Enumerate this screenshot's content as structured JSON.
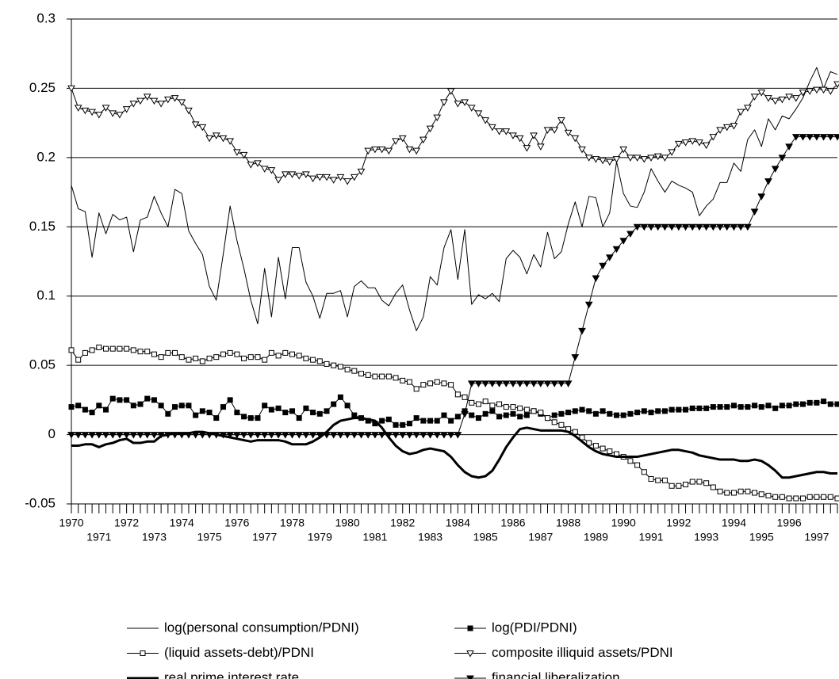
{
  "chart_data": {
    "type": "line",
    "x": [
      1970,
      1970.25,
      1970.5,
      1970.75,
      1971,
      1971.25,
      1971.5,
      1971.75,
      1972,
      1972.25,
      1972.5,
      1972.75,
      1973,
      1973.25,
      1973.5,
      1973.75,
      1974,
      1974.25,
      1974.5,
      1974.75,
      1975,
      1975.25,
      1975.5,
      1975.75,
      1976,
      1976.25,
      1976.5,
      1976.75,
      1977,
      1977.25,
      1977.5,
      1977.75,
      1978,
      1978.25,
      1978.5,
      1978.75,
      1979,
      1979.25,
      1979.5,
      1979.75,
      1980,
      1980.25,
      1980.5,
      1980.75,
      1981,
      1981.25,
      1981.5,
      1981.75,
      1982,
      1982.25,
      1982.5,
      1982.75,
      1983,
      1983.25,
      1983.5,
      1983.75,
      1984,
      1984.25,
      1984.5,
      1984.75,
      1985,
      1985.25,
      1985.5,
      1985.75,
      1986,
      1986.25,
      1986.5,
      1986.75,
      1987,
      1987.25,
      1987.5,
      1987.75,
      1988,
      1988.25,
      1988.5,
      1988.75,
      1989,
      1989.25,
      1989.5,
      1989.75,
      1990,
      1990.25,
      1990.5,
      1990.75,
      1991,
      1991.25,
      1991.5,
      1991.75,
      1992,
      1992.25,
      1992.5,
      1992.75,
      1993,
      1993.25,
      1993.5,
      1993.75,
      1994,
      1994.25,
      1994.5,
      1994.75,
      1995,
      1995.25,
      1995.5,
      1995.75,
      1996,
      1996.25,
      1996.5,
      1996.75,
      1997,
      1997.25,
      1997.5,
      1997.75
    ],
    "series": [
      {
        "name": "log(personal consumption/PDNI)",
        "color": "#000000",
        "width": 1,
        "marker": "none",
        "values": [
          0.18,
          0.163,
          0.161,
          0.128,
          0.16,
          0.145,
          0.159,
          0.155,
          0.157,
          0.132,
          0.155,
          0.157,
          0.172,
          0.16,
          0.15,
          0.177,
          0.174,
          0.147,
          0.138,
          0.13,
          0.107,
          0.097,
          0.13,
          0.165,
          0.14,
          0.12,
          0.097,
          0.08,
          0.12,
          0.085,
          0.128,
          0.098,
          0.135,
          0.135,
          0.11,
          0.1,
          0.084,
          0.102,
          0.102,
          0.104,
          0.085,
          0.107,
          0.111,
          0.106,
          0.106,
          0.097,
          0.093,
          0.102,
          0.108,
          0.09,
          0.075,
          0.085,
          0.114,
          0.108,
          0.135,
          0.148,
          0.112,
          0.148,
          0.094,
          0.101,
          0.098,
          0.102,
          0.096,
          0.127,
          0.133,
          0.128,
          0.116,
          0.13,
          0.121,
          0.146,
          0.127,
          0.132,
          0.152,
          0.168,
          0.15,
          0.172,
          0.171,
          0.15,
          0.16,
          0.197,
          0.174,
          0.165,
          0.164,
          0.175,
          0.192,
          0.183,
          0.175,
          0.183,
          0.18,
          0.178,
          0.175,
          0.158,
          0.165,
          0.17,
          0.182,
          0.182,
          0.196,
          0.19,
          0.213,
          0.22,
          0.208,
          0.228,
          0.22,
          0.23,
          0.228,
          0.235,
          0.243,
          0.255,
          0.265,
          0.25,
          0.262,
          0.26
        ]
      },
      {
        "name": "log(PDI/PDNI)",
        "color": "#000000",
        "width": 1,
        "marker": "square-filled",
        "values": [
          0.02,
          0.021,
          0.018,
          0.016,
          0.021,
          0.018,
          0.026,
          0.025,
          0.025,
          0.021,
          0.022,
          0.026,
          0.025,
          0.021,
          0.015,
          0.02,
          0.021,
          0.021,
          0.014,
          0.017,
          0.016,
          0.012,
          0.02,
          0.025,
          0.016,
          0.013,
          0.012,
          0.012,
          0.021,
          0.018,
          0.019,
          0.016,
          0.017,
          0.012,
          0.019,
          0.016,
          0.015,
          0.017,
          0.022,
          0.027,
          0.021,
          0.014,
          0.012,
          0.01,
          0.008,
          0.01,
          0.011,
          0.007,
          0.007,
          0.008,
          0.012,
          0.01,
          0.01,
          0.01,
          0.014,
          0.01,
          0.013,
          0.017,
          0.014,
          0.012,
          0.015,
          0.017,
          0.013,
          0.014,
          0.015,
          0.013,
          0.014,
          0.017,
          0.015,
          0.012,
          0.014,
          0.015,
          0.016,
          0.017,
          0.018,
          0.017,
          0.015,
          0.017,
          0.015,
          0.014,
          0.014,
          0.015,
          0.016,
          0.017,
          0.016,
          0.017,
          0.017,
          0.018,
          0.018,
          0.018,
          0.019,
          0.019,
          0.019,
          0.02,
          0.02,
          0.02,
          0.021,
          0.02,
          0.02,
          0.021,
          0.02,
          0.021,
          0.019,
          0.021,
          0.021,
          0.022,
          0.022,
          0.023,
          0.023,
          0.024,
          0.022,
          0.022
        ]
      },
      {
        "name": "(liquid assets-debt)/PDNI",
        "color": "#000000",
        "width": 1,
        "marker": "square-open",
        "values": [
          0.061,
          0.054,
          0.059,
          0.061,
          0.063,
          0.062,
          0.062,
          0.062,
          0.062,
          0.061,
          0.06,
          0.06,
          0.058,
          0.056,
          0.059,
          0.059,
          0.056,
          0.054,
          0.055,
          0.053,
          0.055,
          0.056,
          0.058,
          0.059,
          0.058,
          0.055,
          0.056,
          0.056,
          0.054,
          0.059,
          0.057,
          0.059,
          0.058,
          0.057,
          0.055,
          0.054,
          0.053,
          0.051,
          0.05,
          0.049,
          0.047,
          0.046,
          0.044,
          0.043,
          0.042,
          0.042,
          0.042,
          0.041,
          0.039,
          0.038,
          0.033,
          0.036,
          0.037,
          0.038,
          0.037,
          0.036,
          0.029,
          0.027,
          0.023,
          0.022,
          0.024,
          0.021,
          0.022,
          0.02,
          0.02,
          0.019,
          0.018,
          0.017,
          0.016,
          0.012,
          0.009,
          0.007,
          0.004,
          0.002,
          -0.002,
          -0.006,
          -0.008,
          -0.01,
          -0.012,
          -0.014,
          -0.016,
          -0.019,
          -0.022,
          -0.027,
          -0.032,
          -0.033,
          -0.033,
          -0.037,
          -0.037,
          -0.036,
          -0.034,
          -0.034,
          -0.035,
          -0.038,
          -0.041,
          -0.042,
          -0.042,
          -0.041,
          -0.041,
          -0.042,
          -0.043,
          -0.044,
          -0.045,
          -0.045,
          -0.046,
          -0.046,
          -0.046,
          -0.045,
          -0.045,
          -0.045,
          -0.045,
          -0.046
        ]
      },
      {
        "name": "composite illiquid assets/PDNI",
        "color": "#000000",
        "width": 1,
        "marker": "triangle-open",
        "values": [
          0.25,
          0.236,
          0.234,
          0.233,
          0.231,
          0.236,
          0.232,
          0.231,
          0.235,
          0.239,
          0.241,
          0.244,
          0.241,
          0.239,
          0.242,
          0.243,
          0.24,
          0.234,
          0.224,
          0.222,
          0.214,
          0.216,
          0.214,
          0.212,
          0.204,
          0.202,
          0.195,
          0.196,
          0.192,
          0.191,
          0.184,
          0.188,
          0.188,
          0.187,
          0.188,
          0.185,
          0.186,
          0.186,
          0.184,
          0.186,
          0.183,
          0.186,
          0.19,
          0.205,
          0.206,
          0.206,
          0.205,
          0.212,
          0.214,
          0.206,
          0.205,
          0.213,
          0.221,
          0.229,
          0.24,
          0.248,
          0.239,
          0.24,
          0.236,
          0.232,
          0.227,
          0.222,
          0.219,
          0.219,
          0.216,
          0.214,
          0.207,
          0.216,
          0.208,
          0.22,
          0.22,
          0.227,
          0.218,
          0.214,
          0.206,
          0.2,
          0.199,
          0.198,
          0.197,
          0.199,
          0.206,
          0.2,
          0.2,
          0.199,
          0.2,
          0.201,
          0.2,
          0.204,
          0.21,
          0.211,
          0.212,
          0.211,
          0.209,
          0.215,
          0.22,
          0.222,
          0.223,
          0.233,
          0.236,
          0.244,
          0.247,
          0.243,
          0.241,
          0.242,
          0.244,
          0.243,
          0.247,
          0.248,
          0.249,
          0.249,
          0.248,
          0.253
        ]
      },
      {
        "name": "real prime interest rate",
        "color": "#000000",
        "width": 3,
        "marker": "none",
        "values": [
          -0.008,
          -0.008,
          -0.007,
          -0.007,
          -0.009,
          -0.007,
          -0.006,
          -0.004,
          -0.003,
          -0.006,
          -0.006,
          -0.005,
          -0.005,
          -0.001,
          0,
          0.001,
          0.001,
          0.001,
          0.002,
          0.002,
          0.001,
          0,
          -0.001,
          -0.002,
          -0.003,
          -0.004,
          -0.005,
          -0.004,
          -0.004,
          -0.004,
          -0.004,
          -0.005,
          -0.007,
          -0.007,
          -0.007,
          -0.005,
          -0.002,
          0.002,
          0.007,
          0.01,
          0.011,
          0.012,
          0.012,
          0.011,
          0.01,
          0.005,
          -0.002,
          -0.008,
          -0.012,
          -0.014,
          -0.013,
          -0.011,
          -0.01,
          -0.011,
          -0.012,
          -0.016,
          -0.022,
          -0.027,
          -0.03,
          -0.031,
          -0.03,
          -0.026,
          -0.018,
          -0.009,
          -0.002,
          0.004,
          0.005,
          0.004,
          0.003,
          0.003,
          0.003,
          0.003,
          0.002,
          -0.001,
          -0.005,
          -0.009,
          -0.012,
          -0.014,
          -0.015,
          -0.016,
          -0.016,
          -0.016,
          -0.016,
          -0.015,
          -0.014,
          -0.013,
          -0.012,
          -0.011,
          -0.011,
          -0.012,
          -0.013,
          -0.015,
          -0.016,
          -0.017,
          -0.018,
          -0.018,
          -0.018,
          -0.019,
          -0.019,
          -0.018,
          -0.019,
          -0.022,
          -0.026,
          -0.031,
          -0.031,
          -0.03,
          -0.029,
          -0.028,
          -0.027,
          -0.027,
          -0.028,
          -0.028
        ]
      },
      {
        "name": "financial liberalization",
        "color": "#000000",
        "width": 1,
        "marker": "triangle-filled",
        "values": [
          0,
          0,
          0,
          0,
          0,
          0,
          0,
          0,
          0,
          0,
          0,
          0,
          0,
          0,
          0,
          0,
          0,
          0,
          0,
          0,
          0,
          0,
          0,
          0,
          0,
          0,
          0,
          0,
          0,
          0,
          0,
          0,
          0,
          0,
          0,
          0,
          0,
          0,
          0,
          0,
          0,
          0,
          0,
          0,
          0,
          0,
          0,
          0,
          0,
          0,
          0,
          0,
          0,
          0,
          0,
          0,
          0,
          0.015,
          0.037,
          0.037,
          0.037,
          0.037,
          0.037,
          0.037,
          0.037,
          0.037,
          0.037,
          0.037,
          0.037,
          0.037,
          0.037,
          0.037,
          0.037,
          0.056,
          0.075,
          0.094,
          0.113,
          0.122,
          0.128,
          0.134,
          0.14,
          0.145,
          0.15,
          0.15,
          0.15,
          0.15,
          0.15,
          0.15,
          0.15,
          0.15,
          0.15,
          0.15,
          0.15,
          0.15,
          0.15,
          0.15,
          0.15,
          0.15,
          0.15,
          0.161,
          0.172,
          0.183,
          0.192,
          0.2,
          0.208,
          0.215,
          0.215,
          0.215,
          0.215,
          0.215,
          0.215,
          0.215
        ]
      }
    ],
    "xlim": [
      1970,
      1997.75
    ],
    "xticks": [
      1970,
      1971,
      1972,
      1973,
      1974,
      1975,
      1976,
      1977,
      1978,
      1979,
      1980,
      1981,
      1982,
      1983,
      1984,
      1985,
      1986,
      1987,
      1988,
      1989,
      1990,
      1991,
      1992,
      1993,
      1994,
      1995,
      1996,
      1997
    ],
    "ylim": [
      -0.05,
      0.3
    ],
    "yticks": [
      -0.05,
      0,
      0.05,
      0.1,
      0.15,
      0.2,
      0.25,
      0.3
    ],
    "grid": true,
    "legend": "bottom"
  }
}
